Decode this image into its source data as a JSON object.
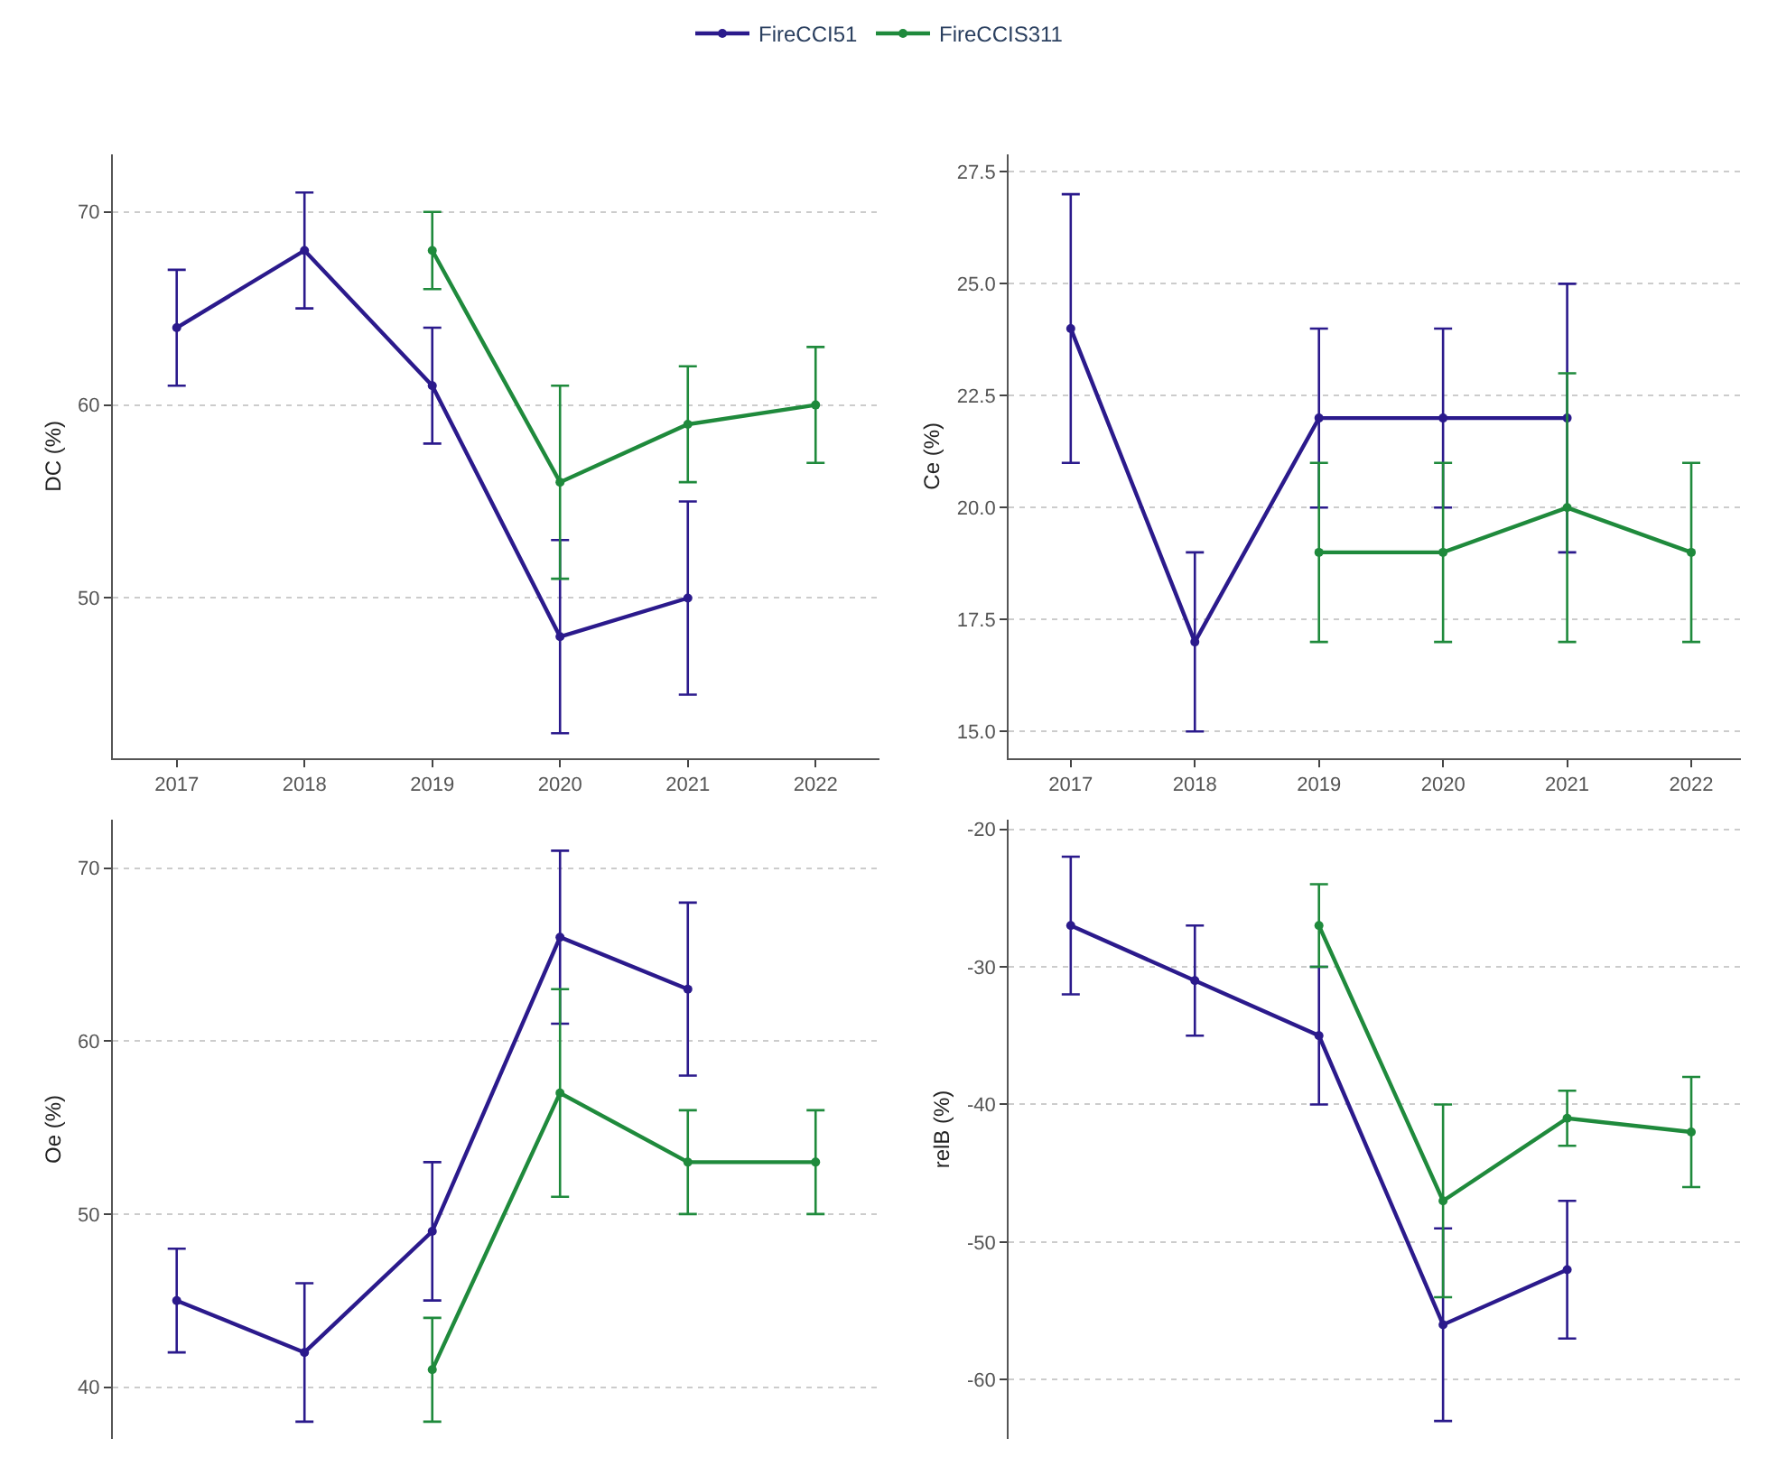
{
  "chart_data": [
    {
      "type": "line",
      "ylabel": "DC (%)",
      "x": [
        2017,
        2018,
        2019,
        2020,
        2021,
        2022
      ],
      "xlim": [
        2016.5,
        2022.5
      ],
      "xticks": [
        2017,
        2018,
        2019,
        2020,
        2021,
        2022
      ],
      "ylim": [
        41.7,
        73
      ],
      "yticks": [
        50,
        60,
        70
      ],
      "grid": "y",
      "legend": "top",
      "marker": "circle",
      "line_style": "solid",
      "series": [
        {
          "name": "FireCCI51",
          "color": "#2b1a8c",
          "values": [
            64,
            68,
            61,
            48,
            50,
            null
          ],
          "errors": [
            [
              61,
              67
            ],
            [
              65,
              71
            ],
            [
              58,
              64
            ],
            [
              43,
              53
            ],
            [
              45,
              55
            ],
            null
          ]
        },
        {
          "name": "FireCCIS311",
          "color": "#1f8a3c",
          "values": [
            null,
            null,
            68,
            56,
            59,
            60
          ],
          "errors": [
            null,
            null,
            [
              66,
              70
            ],
            [
              51,
              61
            ],
            [
              56,
              62
            ],
            [
              57,
              63
            ]
          ]
        }
      ]
    },
    {
      "type": "line",
      "ylabel": "Ce (%)",
      "x": [
        2017,
        2018,
        2019,
        2020,
        2021,
        2022
      ],
      "xlim": [
        2016.5,
        2022.4
      ],
      "xticks": [
        2017,
        2018,
        2019,
        2020,
        2021,
        2022
      ],
      "ylim": [
        14.4,
        27.9
      ],
      "yticks": [
        {
          "value": 15,
          "label": "15.0"
        },
        17.5,
        {
          "value": 20,
          "label": "20.0"
        },
        22.5,
        {
          "value": 25,
          "label": "25.0"
        },
        27.5
      ],
      "grid": "y",
      "marker": "circle",
      "line_style": "solid",
      "series": [
        {
          "color": "#2b1a8c",
          "values": [
            24,
            17,
            22,
            22,
            22,
            null
          ],
          "errors": [
            [
              21,
              27
            ],
            [
              15,
              19
            ],
            [
              20,
              24
            ],
            [
              20,
              24
            ],
            [
              19,
              25
            ],
            null
          ]
        },
        {
          "color": "#1f8a3c",
          "values": [
            null,
            null,
            19,
            19,
            20,
            19
          ],
          "errors": [
            null,
            null,
            [
              17,
              21
            ],
            [
              17,
              21
            ],
            [
              17,
              23
            ],
            [
              17,
              21
            ]
          ]
        }
      ]
    },
    {
      "type": "line",
      "ylabel": "Oe (%)",
      "x": [
        2017,
        2018,
        2019,
        2020,
        2021,
        2022
      ],
      "xlim": [
        2016.5,
        2022.5
      ],
      "ylim": [
        37,
        72.8
      ],
      "yticks": [
        40,
        50,
        60,
        70
      ],
      "grid": "y",
      "marker": "circle",
      "line_style": "solid",
      "tick_labels": "y",
      "series": [
        {
          "color": "#2b1a8c",
          "values": [
            45,
            42,
            49,
            66,
            63,
            null
          ],
          "errors": [
            [
              42,
              48
            ],
            [
              38,
              46
            ],
            [
              45,
              53
            ],
            [
              61,
              71
            ],
            [
              58,
              68
            ],
            null
          ]
        },
        {
          "color": "#1f8a3c",
          "values": [
            null,
            null,
            41,
            57,
            53,
            53
          ],
          "errors": [
            null,
            null,
            [
              38,
              44
            ],
            [
              51,
              63
            ],
            [
              50,
              56
            ],
            [
              50,
              56
            ]
          ]
        }
      ]
    },
    {
      "type": "line",
      "ylabel": "relB (%)",
      "x": [
        2017,
        2018,
        2019,
        2020,
        2021,
        2022
      ],
      "xlim": [
        2016.5,
        2022.4
      ],
      "ylim": [
        -64.3,
        -19.3
      ],
      "yticks": [
        -60,
        -50,
        -40,
        -30,
        -20
      ],
      "grid": "y",
      "marker": "circle",
      "line_style": "solid",
      "tick_labels": "y",
      "series": [
        {
          "color": "#2b1a8c",
          "values": [
            -27,
            -31,
            -35,
            -56,
            -52,
            null
          ],
          "errors": [
            [
              -32,
              -22
            ],
            [
              -35,
              -27
            ],
            [
              -40,
              -30
            ],
            [
              -63,
              -49
            ],
            [
              -57,
              -47
            ],
            null
          ]
        },
        {
          "color": "#1f8a3c",
          "values": [
            null,
            null,
            -27,
            -47,
            -41,
            -42
          ],
          "errors": [
            null,
            null,
            [
              -30,
              -24
            ],
            [
              -54,
              -40
            ],
            [
              -43,
              -39
            ],
            [
              -46,
              -38
            ]
          ]
        }
      ]
    }
  ]
}
